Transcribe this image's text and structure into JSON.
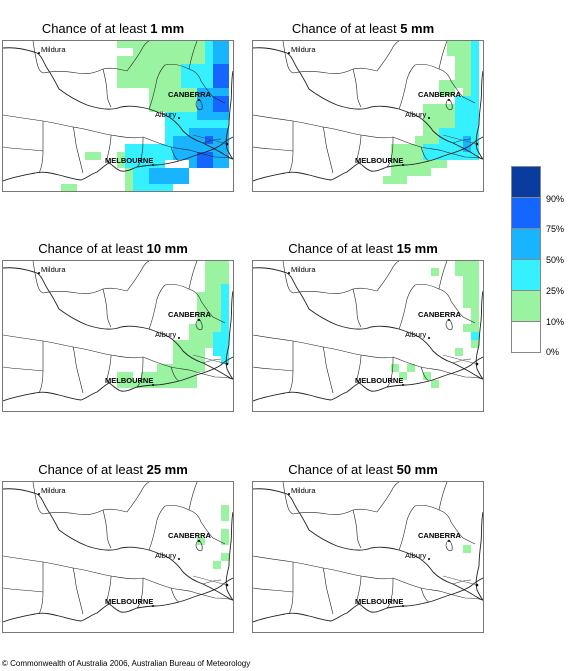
{
  "panels": [
    {
      "title_prefix": "Chance of at least ",
      "amount": "1 mm"
    },
    {
      "title_prefix": "Chance of at least ",
      "amount": "5 mm"
    },
    {
      "title_prefix": "Chance of at least ",
      "amount": "10 mm"
    },
    {
      "title_prefix": "Chance of at least ",
      "amount": "15 mm"
    },
    {
      "title_prefix": "Chance of at least ",
      "amount": "25 mm"
    },
    {
      "title_prefix": "Chance of at least ",
      "amount": "50 mm"
    }
  ],
  "cities": {
    "mildura": "Mildura",
    "canberra": "CANBERRA",
    "albury": "Albury",
    "melbourne": "MELBOURNE"
  },
  "legend": {
    "labels": [
      "90%",
      "75%",
      "50%",
      "25%",
      "10%",
      "0%"
    ],
    "colors": [
      "#0a3ca0",
      "#1565ff",
      "#18b4ff",
      "#35f0ff",
      "#9af3a0",
      "#ffffff"
    ]
  },
  "copyright": "© Commonwealth of Australia 2006, Australian Bureau of Meteorology"
}
